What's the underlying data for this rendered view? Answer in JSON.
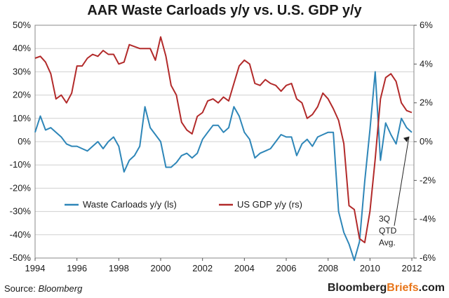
{
  "chart_data": {
    "type": "line",
    "title": "AAR Waste Carloads y/y vs. U.S. GDP y/y",
    "x_ticks": [
      "1994",
      "1996",
      "1998",
      "2000",
      "2002",
      "2004",
      "2006",
      "2008",
      "2010",
      "2012"
    ],
    "xlim": [
      1994,
      2012.1
    ],
    "y_left": {
      "ticks": [
        "50%",
        "40%",
        "30%",
        "20%",
        "10%",
        "0%",
        "-10%",
        "-20%",
        "-30%",
        "-40%",
        "-50%"
      ],
      "range": [
        -50,
        50
      ]
    },
    "y_right": {
      "ticks": [
        "6%",
        "4%",
        "2%",
        "0%",
        "-2%",
        "-4%",
        "-6%"
      ],
      "range": [
        -6,
        6
      ]
    },
    "grid": "horizontal-major",
    "legend_position": "lower-left",
    "series": [
      {
        "name": "Waste Carloads y/y (ls)",
        "axis": "left",
        "color": "#2e86b8",
        "x": [
          1994.0,
          1994.25,
          1994.5,
          1994.75,
          1995.0,
          1995.25,
          1995.5,
          1995.75,
          1996.0,
          1996.25,
          1996.5,
          1996.75,
          1997.0,
          1997.25,
          1997.5,
          1997.75,
          1998.0,
          1998.25,
          1998.5,
          1998.75,
          1999.0,
          1999.25,
          1999.5,
          1999.75,
          2000.0,
          2000.25,
          2000.5,
          2000.75,
          2001.0,
          2001.25,
          2001.5,
          2001.75,
          2002.0,
          2002.25,
          2002.5,
          2002.75,
          2003.0,
          2003.25,
          2003.5,
          2003.75,
          2004.0,
          2004.25,
          2004.5,
          2004.75,
          2005.0,
          2005.25,
          2005.5,
          2005.75,
          2006.0,
          2006.25,
          2006.5,
          2006.75,
          2007.0,
          2007.25,
          2007.5,
          2007.75,
          2008.0,
          2008.25,
          2008.5,
          2008.75,
          2009.0,
          2009.25,
          2009.5,
          2009.75,
          2010.0,
          2010.25,
          2010.5,
          2010.75,
          2011.0,
          2011.25,
          2011.5,
          2011.75,
          2012.0
        ],
        "values": [
          4,
          11,
          5,
          6,
          4,
          2,
          -1,
          -2,
          -2,
          -3,
          -4,
          -2,
          0,
          -3,
          0,
          2,
          -2,
          -13,
          -8,
          -6,
          -2,
          15,
          6,
          3,
          0,
          -11,
          -11,
          -9,
          -6,
          -5,
          -7,
          -5,
          1,
          4,
          7,
          7,
          4,
          6,
          15,
          11,
          4,
          1,
          -7,
          -5,
          -4,
          -3,
          0,
          3,
          2,
          2,
          -6,
          -1,
          1,
          -2,
          2,
          3,
          4,
          4,
          -30,
          -39,
          -44,
          -51,
          -43,
          -17,
          5,
          30,
          -8,
          8,
          3,
          -1,
          10,
          6,
          4
        ]
      },
      {
        "name": "US GDP y/y (rs)",
        "axis": "right",
        "color": "#b22a2a",
        "x": [
          1994.0,
          1994.25,
          1994.5,
          1994.75,
          1995.0,
          1995.25,
          1995.5,
          1995.75,
          1996.0,
          1996.25,
          1996.5,
          1996.75,
          1997.0,
          1997.25,
          1997.5,
          1997.75,
          1998.0,
          1998.25,
          1998.5,
          1998.75,
          1999.0,
          1999.25,
          1999.5,
          1999.75,
          2000.0,
          2000.25,
          2000.5,
          2000.75,
          2001.0,
          2001.25,
          2001.5,
          2001.75,
          2002.0,
          2002.25,
          2002.5,
          2002.75,
          2003.0,
          2003.25,
          2003.5,
          2003.75,
          2004.0,
          2004.25,
          2004.5,
          2004.75,
          2005.0,
          2005.25,
          2005.5,
          2005.75,
          2006.0,
          2006.25,
          2006.5,
          2006.75,
          2007.0,
          2007.25,
          2007.5,
          2007.75,
          2008.0,
          2008.25,
          2008.5,
          2008.75,
          2009.0,
          2009.25,
          2009.5,
          2009.75,
          2010.0,
          2010.25,
          2010.5,
          2010.75,
          2011.0,
          2011.25,
          2011.5,
          2011.75,
          2012.0
        ],
        "values": [
          4.3,
          4.4,
          4.1,
          3.5,
          2.2,
          2.4,
          2.0,
          2.5,
          3.9,
          3.9,
          4.3,
          4.5,
          4.4,
          4.7,
          4.5,
          4.5,
          4.0,
          4.1,
          5.0,
          4.9,
          4.8,
          4.8,
          4.8,
          4.2,
          5.4,
          4.4,
          2.9,
          2.4,
          1.0,
          0.6,
          0.4,
          1.3,
          1.5,
          2.1,
          2.2,
          2.0,
          2.3,
          2.1,
          3.0,
          3.9,
          4.2,
          4.0,
          3.0,
          2.9,
          3.2,
          3.0,
          2.9,
          2.6,
          2.9,
          3.0,
          2.2,
          2.0,
          1.2,
          1.4,
          1.8,
          2.5,
          2.2,
          1.7,
          1.1,
          -0.1,
          -3.3,
          -3.5,
          -5.0,
          -5.2,
          -3.6,
          -0.9,
          2.2,
          3.3,
          3.5,
          3.1,
          2.0,
          1.6,
          1.5
        ]
      }
    ],
    "annotations": [
      {
        "label": "3Q QTD Avg.",
        "lines": [
          "3Q",
          "QTD",
          "Avg."
        ]
      }
    ]
  },
  "footer": {
    "source_prefix": "Source:",
    "source_name": "Bloomberg",
    "brand_part1": "Bloomberg",
    "brand_part2": "Briefs",
    "brand_suffix": ".com"
  }
}
